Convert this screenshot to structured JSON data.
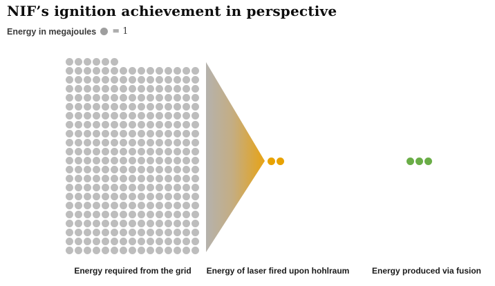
{
  "title": "NIF’s ignition achievement in perspective",
  "legend": {
    "label": "Energy in megajoules",
    "equals_text": "= 1",
    "dot_color": "#9e9e9e"
  },
  "chart_data": {
    "type": "pictogram",
    "title": "NIF’s ignition achievement in perspective",
    "unit_label": "Energy in megajoules",
    "dot_value": 1,
    "unit": "megajoules",
    "grid_columns": 15,
    "series": [
      {
        "name": "Energy required from the grid",
        "value": 321,
        "color": "#bdbdbd"
      },
      {
        "name": "Energy of laser fired upon hohlraum",
        "value": 2,
        "color": "#e8a202"
      },
      {
        "name": "Energy produced via fusion",
        "value": 3,
        "color": "#6aad47"
      }
    ],
    "funnel": {
      "from_color": "#b5b2ad",
      "mid_color": "#c4ad83",
      "to_color": "#e7a315"
    },
    "legend_position": "top-left",
    "grid": false
  }
}
